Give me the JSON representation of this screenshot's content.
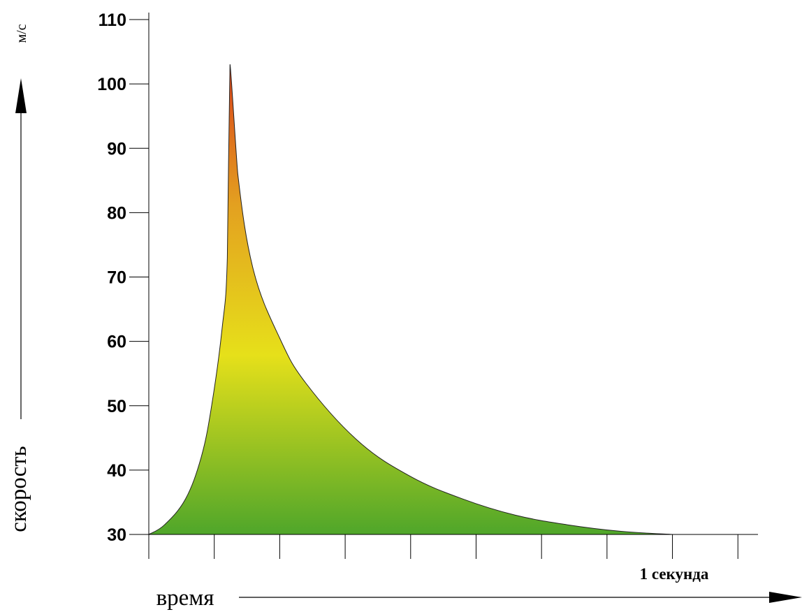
{
  "chart_data": {
    "type": "area",
    "title": "",
    "xlabel": "время",
    "ylabel": "скорость",
    "y_unit": "м/с",
    "x_annotation": "1 секунда",
    "ylim": [
      30,
      110
    ],
    "xlim": [
      0,
      1.13
    ],
    "y_ticks": [
      "30",
      "40",
      "50",
      "60",
      "70",
      "80",
      "90",
      "100",
      "110"
    ],
    "x_tick_count": 10,
    "grid": false,
    "legend": "none",
    "gradient_colors": [
      "#d9401a",
      "#e3a020",
      "#e6e01a",
      "#4fa62a"
    ],
    "x": [
      0,
      0.03,
      0.07,
      0.1,
      0.12,
      0.14,
      0.15,
      0.155,
      0.17,
      0.2,
      0.25,
      0.3,
      0.4,
      0.5,
      0.6,
      0.7,
      0.8,
      0.9,
      1.0
    ],
    "y": [
      30,
      31.5,
      35.5,
      42,
      50,
      62,
      73,
      103,
      86,
      71,
      60.5,
      53.5,
      44.5,
      39,
      35.5,
      33,
      31.5,
      30.5,
      30
    ]
  }
}
